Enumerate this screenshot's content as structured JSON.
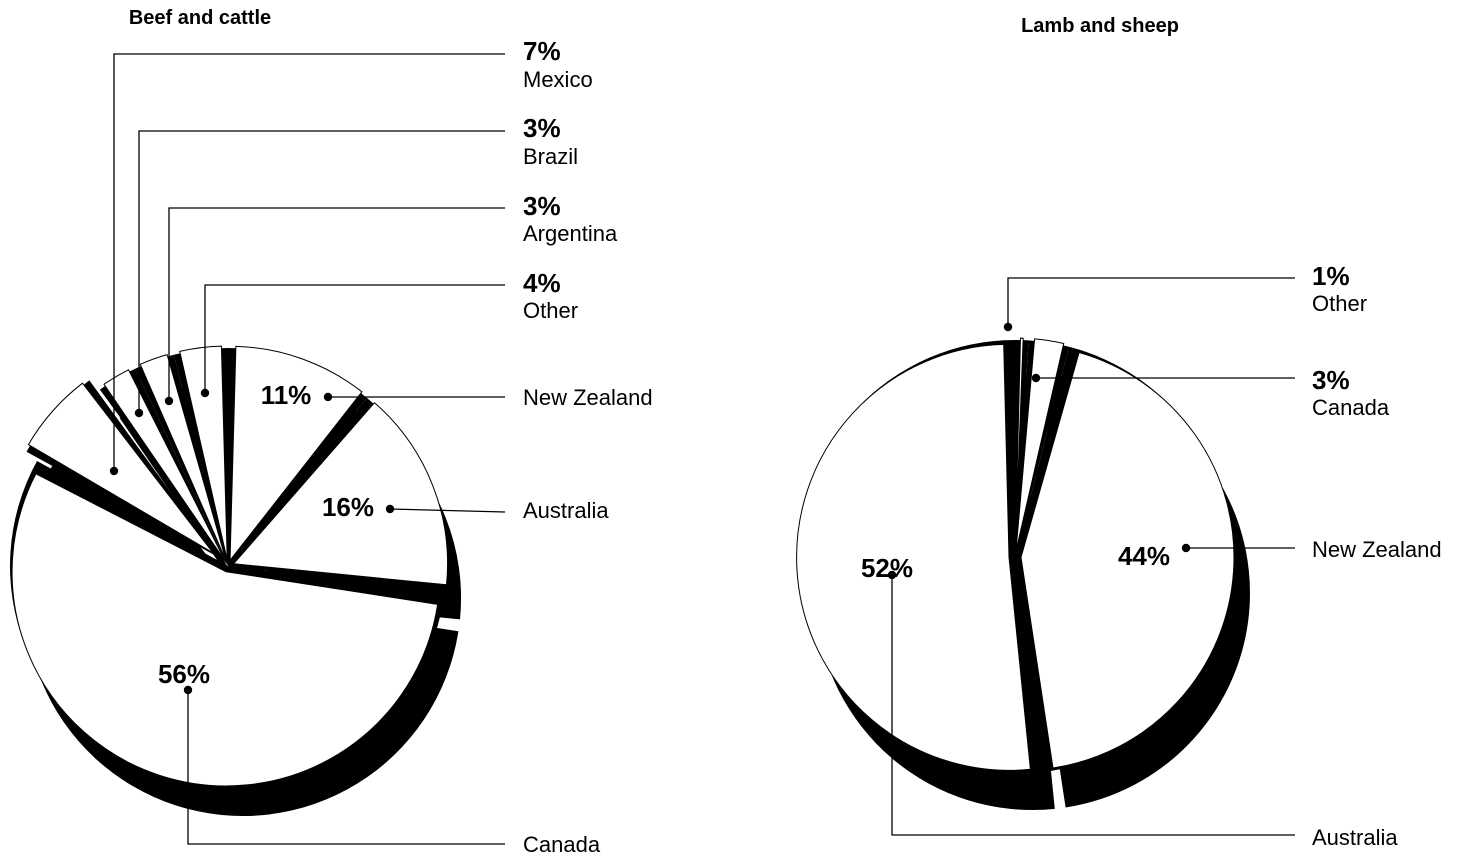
{
  "chart_data": [
    {
      "type": "pie",
      "title": "Beef and cattle",
      "slices": [
        {
          "label": "New Zealand",
          "value": 11,
          "value_label": "11%"
        },
        {
          "label": "Australia",
          "value": 16,
          "value_label": "16%"
        },
        {
          "label": "Canada",
          "value": 56,
          "value_label": "56%"
        },
        {
          "label": "Mexico",
          "value": 7,
          "value_label": "7%"
        },
        {
          "label": "Brazil",
          "value": 3,
          "value_label": "3%"
        },
        {
          "label": "Argentina",
          "value": 3,
          "value_label": "3%"
        },
        {
          "label": "Other",
          "value": 4,
          "value_label": "4%"
        }
      ],
      "colors": {
        "fill": "#ffffff",
        "shadow": "#000000"
      }
    },
    {
      "type": "pie",
      "title": "Lamb and sheep",
      "slices": [
        {
          "label": "Canada",
          "value": 3,
          "value_label": "3%"
        },
        {
          "label": "New Zealand",
          "value": 44,
          "value_label": "44%"
        },
        {
          "label": "Australia",
          "value": 52,
          "value_label": "52%"
        },
        {
          "label": "Other",
          "value": 1,
          "value_label": "1%"
        }
      ],
      "colors": {
        "fill": "#ffffff",
        "shadow": "#000000"
      }
    }
  ]
}
